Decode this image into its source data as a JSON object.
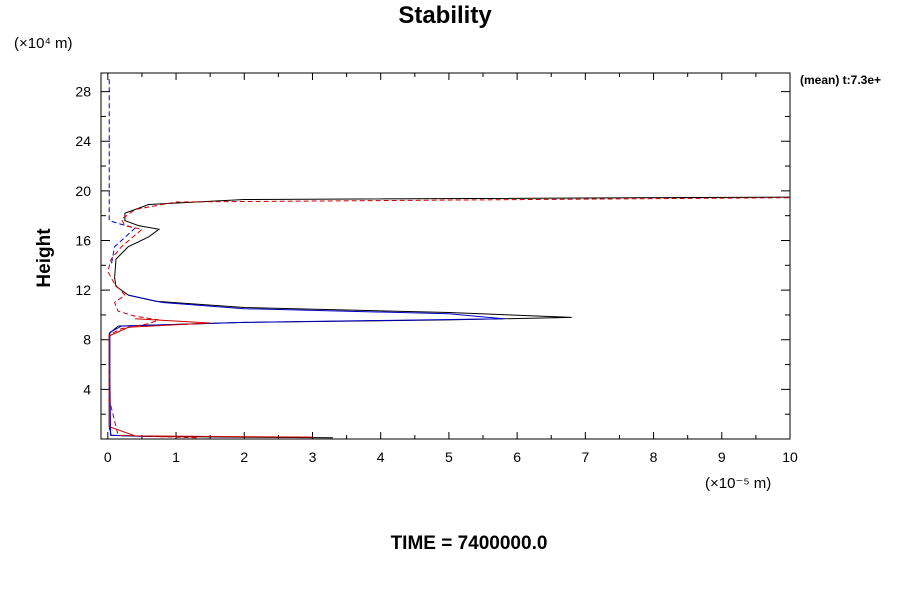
{
  "chart_data": {
    "type": "line",
    "title": "Stability",
    "xlabel": "",
    "ylabel": "Height",
    "x_unit_label": "(×10⁻⁵ m)",
    "y_unit_label": "(×10⁴ m)",
    "annotation": "(mean) t:7.3e+",
    "footer": "TIME = 7400000.0",
    "xlim": [
      -0.1,
      10
    ],
    "ylim": [
      0,
      29.5
    ],
    "x_ticks": [
      0,
      1,
      2,
      3,
      4,
      5,
      6,
      7,
      8,
      9,
      10
    ],
    "y_ticks": [
      4,
      8,
      12,
      16,
      20,
      24,
      28
    ],
    "grid": false,
    "series": [
      {
        "color": "#000000",
        "dash": "solid",
        "points": [
          [
            3.3,
            0.1
          ],
          [
            0.6,
            0.2
          ],
          [
            0.05,
            0.3
          ],
          [
            0.02,
            1
          ],
          [
            0.02,
            5
          ],
          [
            0.02,
            8.5
          ],
          [
            0.15,
            9.1
          ],
          [
            2,
            9.4
          ],
          [
            5,
            9.6
          ],
          [
            6.8,
            9.8
          ],
          [
            5,
            10.2
          ],
          [
            2,
            10.6
          ],
          [
            0.7,
            11.1
          ],
          [
            0.3,
            11.6
          ],
          [
            0.12,
            12.3
          ],
          [
            0.1,
            13
          ],
          [
            0.12,
            14.5
          ],
          [
            0.3,
            15.5
          ],
          [
            0.6,
            16.3
          ],
          [
            0.75,
            16.9
          ],
          [
            0.45,
            17.2
          ],
          [
            0.25,
            17.6
          ],
          [
            0.25,
            18.2
          ],
          [
            0.6,
            18.9
          ],
          [
            2,
            19.3
          ],
          [
            10,
            19.5
          ]
        ]
      },
      {
        "color": "#0000cc",
        "dash": "dashed",
        "points": [
          [
            0.02,
            29
          ],
          [
            0.02,
            25
          ],
          [
            0.02,
            21
          ],
          [
            0.02,
            17.6
          ],
          [
            0.2,
            17.3
          ],
          [
            0.4,
            17.0
          ],
          [
            0.3,
            16.5
          ],
          [
            0.1,
            15.5
          ],
          [
            0.05,
            14
          ]
        ]
      },
      {
        "color": "#0000cc",
        "dash": "solid",
        "points": [
          [
            0.6,
            0.2
          ],
          [
            0.04,
            0.3
          ],
          [
            0.03,
            5
          ],
          [
            0.03,
            8.6
          ],
          [
            0.2,
            9.1
          ],
          [
            2,
            9.4
          ],
          [
            5.8,
            9.7
          ],
          [
            5,
            10.1
          ],
          [
            2,
            10.5
          ],
          [
            0.8,
            11.0
          ],
          [
            0.3,
            11.6
          ]
        ]
      },
      {
        "color": "#cc0000",
        "dash": "dashed",
        "points": [
          [
            1.3,
            0.1
          ],
          [
            0.15,
            0.3
          ],
          [
            0.03,
            3
          ],
          [
            0.02,
            8.4
          ],
          [
            0.2,
            8.9
          ],
          [
            0.6,
            9.3
          ],
          [
            0.75,
            9.6
          ],
          [
            0.4,
            9.9
          ],
          [
            0.15,
            10.3
          ],
          [
            0.1,
            11
          ],
          [
            0.25,
            11.6
          ],
          [
            0.1,
            12.5
          ],
          [
            0,
            13.5
          ],
          [
            0.05,
            14.5
          ],
          [
            0.2,
            15.5
          ],
          [
            0.35,
            16.2
          ],
          [
            0.5,
            16.9
          ],
          [
            0.25,
            17.2
          ],
          [
            0.2,
            17.7
          ],
          [
            0.4,
            18.5
          ],
          [
            1,
            19.1
          ],
          [
            10,
            19.45
          ]
        ]
      },
      {
        "color": "#cc0000",
        "dash": "solid",
        "points": [
          [
            3.0,
            0.15
          ],
          [
            0.4,
            0.25
          ],
          [
            0.02,
            1
          ],
          [
            0.02,
            8.3
          ],
          [
            0.3,
            9.0
          ],
          [
            1.5,
            9.35
          ],
          [
            0.4,
            9.7
          ]
        ]
      }
    ]
  }
}
